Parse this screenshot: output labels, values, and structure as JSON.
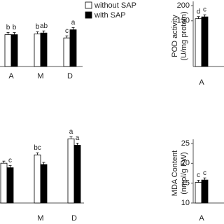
{
  "chart_data": [
    {
      "type": "bar",
      "categories": [
        "A",
        "M",
        "D"
      ],
      "ylim": [
        0,
        1.2
      ],
      "legend": "top-right",
      "series": [
        {
          "name": "without SAP",
          "color": "#ffffff",
          "values": [
            0.78,
            0.8,
            0.7
          ],
          "letters": [
            "b",
            "b",
            "c"
          ]
        },
        {
          "name": "with SAP",
          "color": "#000000",
          "values": [
            0.78,
            0.82,
            0.9
          ],
          "letters": [
            "b",
            "ab",
            "a"
          ]
        }
      ]
    },
    {
      "type": "bar",
      "categories": [
        "A"
      ],
      "ylim": [
        0,
        200
      ],
      "yticks": [
        150,
        200
      ],
      "ylabel": [
        "POD activity",
        "(U/mg protein)"
      ],
      "series": [
        {
          "name": "without SAP",
          "color": "#ffffff",
          "values": [
            157
          ],
          "letters": [
            "d"
          ]
        },
        {
          "name": "with SAP",
          "color": "#000000",
          "values": [
            163
          ],
          "letters": [
            "c"
          ]
        }
      ]
    },
    {
      "type": "bar",
      "categories": [
        null,
        "M",
        "D"
      ],
      "ylim": [
        0,
        1.2
      ],
      "series": [
        {
          "name": "without SAP",
          "color": "#ffffff",
          "values": [
            0.62,
            0.75,
            1.0
          ],
          "letters": [
            null,
            "bc",
            "a"
          ]
        },
        {
          "name": "with SAP",
          "color": "#000000",
          "values": [
            0.55,
            0.6,
            0.9
          ],
          "letters": [
            "c",
            null,
            "a"
          ]
        }
      ]
    },
    {
      "type": "bar",
      "categories": [
        "A"
      ],
      "ylim": [
        10,
        25
      ],
      "yticks": [
        10,
        15,
        20,
        25
      ],
      "ylabel": [
        "MDA Content",
        "(nmol/g FW)"
      ],
      "series": [
        {
          "name": "without SAP",
          "color": "#ffffff",
          "values": [
            15.2
          ],
          "letters": [
            "c"
          ]
        },
        {
          "name": "with SAP",
          "color": "#000000",
          "values": [
            15.8
          ],
          "letters": [
            "c"
          ]
        }
      ]
    }
  ]
}
